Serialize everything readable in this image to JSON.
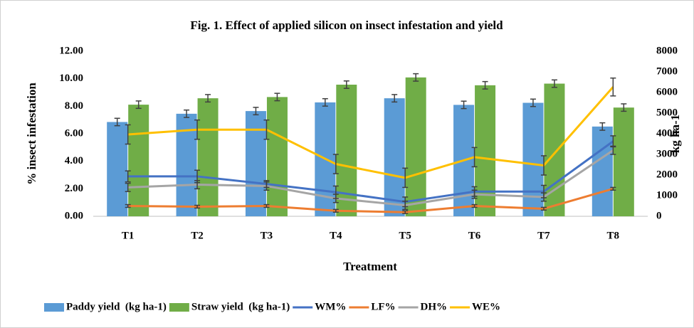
{
  "chart_data": {
    "type": "combo",
    "title": "Fig. 1. Effect of applied silicon on insect infestation and yield",
    "x_label": "Treatment",
    "y_label": "% insect infestation",
    "y2_label": "kg ha-1",
    "categories": [
      "T1",
      "T2",
      "T3",
      "T4",
      "T5",
      "T6",
      "T7",
      "T8"
    ],
    "ylim": [
      0,
      12
    ],
    "yticks": [
      {
        "value": 0,
        "label": "0.00"
      },
      {
        "value": 2,
        "label": "2.00"
      },
      {
        "value": 4,
        "label": "4.00"
      },
      {
        "value": 6,
        "label": "6.00"
      },
      {
        "value": 8,
        "label": "8.00"
      },
      {
        "value": 10,
        "label": "10.00"
      },
      {
        "value": 12,
        "label": "12.00"
      }
    ],
    "y2lim": [
      0,
      8000
    ],
    "y2ticks": [
      0,
      1000,
      2000,
      3000,
      4000,
      5000,
      6000,
      7000,
      8000
    ],
    "grid": false,
    "legend": "bottom",
    "series": [
      {
        "name": "Paddy yield  (kg ha-1)",
        "type": "bar",
        "axis": "y2",
        "color": "#5b9bd5",
        "values": [
          4570,
          4970,
          5100,
          5520,
          5720,
          5400,
          5500,
          4350
        ],
        "errors": [
          180,
          180,
          180,
          180,
          180,
          180,
          180,
          180
        ]
      },
      {
        "name": "Straw yield  (kg ha-1)",
        "type": "bar",
        "axis": "y2",
        "color": "#70ad47",
        "values": [
          5410,
          5720,
          5780,
          6380,
          6730,
          6350,
          6430,
          5270
        ],
        "errors": [
          180,
          180,
          180,
          180,
          180,
          180,
          180,
          180
        ]
      },
      {
        "name": "WM%",
        "type": "line",
        "color": "#4472c4",
        "values": [
          2.9,
          2.9,
          2.35,
          1.75,
          1.05,
          1.8,
          1.8,
          5.45
        ],
        "errors": [
          0.4,
          0.45,
          0.25,
          0.45,
          0.35,
          0.35,
          0.45,
          0.4
        ]
      },
      {
        "name": "LF%",
        "type": "line",
        "color": "#ed7d31",
        "values": [
          0.75,
          0.7,
          0.75,
          0.4,
          0.3,
          0.75,
          0.55,
          2.0
        ],
        "errors": [
          0.1,
          0.1,
          0.1,
          0.1,
          0.1,
          0.1,
          0.1,
          0.1
        ]
      },
      {
        "name": "DH%",
        "type": "line",
        "color": "#a5a5a5",
        "values": [
          2.1,
          2.3,
          2.2,
          1.3,
          0.8,
          1.6,
          1.4,
          4.8
        ],
        "errors": [
          0.3,
          0.3,
          0.3,
          0.3,
          0.3,
          0.3,
          0.3,
          0.3
        ]
      },
      {
        "name": "WE%",
        "type": "line",
        "color": "#ffc000",
        "values": [
          5.95,
          6.3,
          6.3,
          3.8,
          2.8,
          4.3,
          3.7,
          9.4
        ],
        "errors": [
          0.7,
          0.7,
          0.7,
          0.7,
          0.7,
          0.7,
          0.7,
          0.65
        ]
      }
    ]
  }
}
